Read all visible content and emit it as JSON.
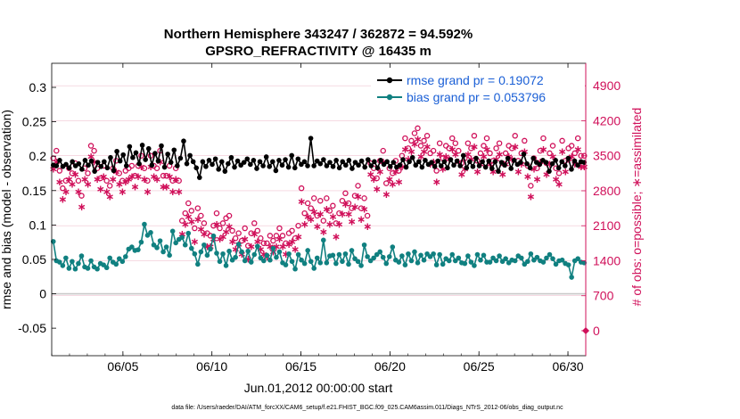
{
  "chart_data": {
    "type": "line",
    "title_line1": "Northern Hemisphere 343247 / 362872 = 94.592%",
    "title_line2": "GPSRO_REFRACTIVITY @ 16435 m",
    "xlabel": "Jun.01,2012 00:00:00 start",
    "ylabel_left": "rmse and bias (model - observation)",
    "ylabel_right": "# of obs: o=possible; ∗=assimilated",
    "footnote": "data file: /Users/raeder/DAI/ATM_forcXX/CAM6_setup/f.e21.FHIST_BGC.f09_025.CAM6assim.011/Diags_NTrS_2012-06/obs_diag_output.nc",
    "x_ticks": [
      "06/05",
      "06/10",
      "06/15",
      "06/20",
      "06/25",
      "06/30"
    ],
    "x_tick_days": [
      5,
      10,
      15,
      20,
      25,
      30
    ],
    "x_range_days": [
      1,
      31
    ],
    "y_left_ticks": [
      "0.3",
      "0.25",
      "0.2",
      "0.15",
      "0.1",
      "0.05",
      "0",
      "-0.05"
    ],
    "y_left_values": [
      0.3,
      0.25,
      0.2,
      0.15,
      0.1,
      0.05,
      0,
      -0.05
    ],
    "y_left_range": [
      -0.09,
      0.335
    ],
    "y_right_ticks": [
      "4900",
      "4200",
      "3500",
      "2800",
      "2100",
      "1400",
      "700",
      "0"
    ],
    "y_right_values": [
      4900,
      4200,
      3500,
      2800,
      2100,
      1400,
      700,
      0
    ],
    "y_right_range": [
      -500,
      5350
    ],
    "colors": {
      "rmse": "#000000",
      "bias": "#108080",
      "obs": "#d0105a",
      "legend_text": "#1a5fd6",
      "zero_line": "#c8c8c8",
      "grid": "#f0c4d2"
    },
    "series": [
      {
        "name": "rmse grand pr = 0.19072",
        "axis": "left",
        "values": [
          0.187,
          0.186,
          0.194,
          0.185,
          0.188,
          0.183,
          0.192,
          0.186,
          0.189,
          0.181,
          0.194,
          0.187,
          0.193,
          0.178,
          0.191,
          0.185,
          0.192,
          0.183,
          0.198,
          0.179,
          0.207,
          0.193,
          0.202,
          0.186,
          0.214,
          0.198,
          0.205,
          0.189,
          0.216,
          0.195,
          0.211,
          0.187,
          0.204,
          0.193,
          0.215,
          0.184,
          0.203,
          0.191,
          0.209,
          0.186,
          0.197,
          0.222,
          0.189,
          0.201,
          0.192,
          0.183,
          0.169,
          0.192,
          0.185,
          0.194,
          0.188,
          0.196,
          0.181,
          0.192,
          0.178,
          0.189,
          0.198,
          0.184,
          0.193,
          0.187,
          0.191,
          0.196,
          0.188,
          0.194,
          0.182,
          0.192,
          0.186,
          0.199,
          0.185,
          0.192,
          0.179,
          0.194,
          0.187,
          0.195,
          0.184,
          0.201,
          0.183,
          0.196,
          0.188,
          0.192,
          0.186,
          0.226,
          0.186,
          0.193,
          0.189,
          0.195,
          0.186,
          0.191,
          0.185,
          0.194,
          0.183,
          0.192,
          0.187,
          0.194,
          0.182,
          0.191,
          0.187,
          0.193,
          0.184,
          0.195,
          0.186,
          0.192,
          0.183,
          0.194,
          0.188,
          0.192,
          0.185,
          0.191,
          0.184,
          0.187,
          0.195,
          0.184,
          0.192,
          0.198,
          0.187,
          0.192,
          0.184,
          0.194,
          0.188,
          0.191,
          0.185,
          0.193,
          0.186,
          0.192,
          0.183,
          0.195,
          0.187,
          0.193,
          0.186,
          0.201,
          0.183,
          0.192,
          0.185,
          0.197,
          0.186,
          0.192,
          0.184,
          0.193,
          0.182,
          0.192,
          0.178,
          0.191,
          0.187,
          0.197,
          0.182,
          0.194,
          0.188,
          0.191,
          0.203,
          0.189,
          0.183,
          0.197,
          0.191,
          0.188,
          0.194,
          0.191,
          0.178,
          0.189,
          0.194,
          0.183,
          0.192,
          0.186,
          0.197,
          0.181,
          0.193,
          0.187,
          0.192,
          0.191
        ]
      },
      {
        "name": "bias grand pr = 0.053796",
        "axis": "left",
        "values": [
          0.076,
          0.048,
          0.046,
          0.041,
          0.052,
          0.037,
          0.047,
          0.036,
          0.044,
          0.055,
          0.039,
          0.037,
          0.048,
          0.039,
          0.036,
          0.044,
          0.042,
          0.038,
          0.052,
          0.046,
          0.043,
          0.051,
          0.047,
          0.054,
          0.065,
          0.068,
          0.063,
          0.064,
          0.075,
          0.101,
          0.085,
          0.089,
          0.071,
          0.067,
          0.077,
          0.061,
          0.068,
          0.056,
          0.091,
          0.074,
          0.079,
          0.082,
          0.071,
          0.088,
          0.066,
          0.058,
          0.043,
          0.061,
          0.071,
          0.056,
          0.065,
          0.084,
          0.059,
          0.047,
          0.058,
          0.041,
          0.062,
          0.049,
          0.053,
          0.072,
          0.061,
          0.048,
          0.062,
          0.046,
          0.057,
          0.069,
          0.052,
          0.048,
          0.056,
          0.049,
          0.066,
          0.053,
          0.061,
          0.045,
          0.042,
          0.058,
          0.047,
          0.036,
          0.057,
          0.049,
          0.044,
          0.063,
          0.047,
          0.037,
          0.052,
          0.045,
          0.078,
          0.045,
          0.055,
          0.056,
          0.044,
          0.057,
          0.047,
          0.058,
          0.043,
          0.063,
          0.051,
          0.047,
          0.041,
          0.071,
          0.054,
          0.048,
          0.052,
          0.057,
          0.061,
          0.053,
          0.044,
          0.054,
          0.068,
          0.049,
          0.046,
          0.055,
          0.042,
          0.058,
          0.048,
          0.061,
          0.045,
          0.056,
          0.049,
          0.058,
          0.054,
          0.058,
          0.042,
          0.057,
          0.043,
          0.051,
          0.048,
          0.057,
          0.048,
          0.052,
          0.045,
          0.044,
          0.055,
          0.046,
          0.041,
          0.057,
          0.049,
          0.056,
          0.046,
          0.046,
          0.052,
          0.048,
          0.055,
          0.047,
          0.051,
          0.045,
          0.049,
          0.048,
          0.055,
          0.052,
          0.043,
          0.047,
          0.058,
          0.049,
          0.053,
          0.048,
          0.046,
          0.052,
          0.057,
          0.051,
          0.043,
          0.048,
          0.049,
          0.044,
          0.042,
          0.024,
          0.048,
          0.051,
          0.046,
          0.045
        ]
      }
    ],
    "obs_possible": [
      3450,
      3600,
      3200,
      2850,
      3000,
      3250,
      3150,
      3350,
      3000,
      2700,
      3250,
      3150,
      3700,
      3600,
      3250,
      3050,
      3300,
      3000,
      2900,
      3250,
      3400,
      3150,
      3000,
      3200,
      3250,
      3300,
      3100,
      3300,
      3500,
      3250,
      3000,
      3500,
      3300,
      3250,
      3600,
      3100,
      3100,
      3300,
      3000,
      3250,
      3000,
      2200,
      2350,
      2550,
      2400,
      2050,
      2450,
      2300,
      2150,
      1950,
      1900,
      2100,
      2350,
      2050,
      2150,
      2250,
      2300,
      2000,
      1850,
      1950,
      1800,
      2050,
      1700,
      1950,
      2150,
      2000,
      1850,
      1750,
      1750,
      1900,
      1800,
      1900,
      2050,
      1900,
      1750,
      1950,
      2000,
      1850,
      2100,
      2850,
      2350,
      2550,
      2450,
      2650,
      2300,
      2600,
      2200,
      2650,
      2400,
      2500,
      2150,
      2350,
      2600,
      2750,
      2550,
      2450,
      2700,
      2900,
      2450,
      2650,
      2300,
      3350,
      3250,
      3050,
      3400,
      3600,
      2950,
      3250,
      3150,
      3400,
      3200,
      3500,
      3850,
      3650,
      3800,
      3950,
      4050,
      3700,
      3800,
      3900,
      3550,
      3600,
      3200,
      3750,
      3450,
      3700,
      3650,
      3850,
      3750,
      3600,
      3350,
      3450,
      3750,
      3650,
      3900,
      3400,
      3550,
      3700,
      3850,
      3550,
      3400,
      3650,
      3750,
      3350,
      3550,
      3700,
      3650,
      3900,
      3400,
      3550,
      3800,
      3300,
      2900,
      3450,
      3250,
      3600,
      3850,
      3350,
      3550,
      3700,
      3250,
      3150,
      3800,
      3400,
      3650,
      3700,
      3550,
      3850,
      3500,
      3500
    ],
    "obs_assimilated": [
      3250,
      3400,
      3000,
      2650,
      2800,
      3050,
      2950,
      3150,
      2800,
      2500,
      3050,
      2950,
      3500,
      3400,
      3050,
      2850,
      3100,
      2800,
      2700,
      3050,
      3200,
      2950,
      2800,
      3000,
      3050,
      3100,
      2900,
      3100,
      3300,
      3050,
      2800,
      3300,
      3100,
      3050,
      3400,
      2900,
      2900,
      3100,
      2800,
      3050,
      2800,
      1950,
      2150,
      2300,
      2200,
      1800,
      2250,
      2050,
      1950,
      1700,
      1700,
      1850,
      2150,
      1850,
      1900,
      2000,
      2100,
      1800,
      1650,
      1750,
      1550,
      1850,
      1450,
      1700,
      1950,
      1800,
      1650,
      1550,
      1500,
      1700,
      1600,
      1700,
      1850,
      1700,
      1550,
      1750,
      1800,
      1650,
      1900,
      2600,
      2150,
      2300,
      2250,
      2400,
      2100,
      2350,
      2000,
      2450,
      2150,
      2300,
      1900,
      2150,
      2350,
      2550,
      2350,
      2200,
      2500,
      2700,
      2250,
      2450,
      2100,
      3150,
      3050,
      2850,
      3200,
      3400,
      2750,
      3050,
      2950,
      3200,
      3000,
      3300,
      3650,
      3450,
      3600,
      3750,
      3850,
      3500,
      3600,
      3700,
      3350,
      3400,
      3000,
      3550,
      3250,
      3500,
      3450,
      3650,
      3550,
      3400,
      3150,
      3250,
      3550,
      3450,
      3700,
      3200,
      3350,
      3500,
      3650,
      3350,
      3200,
      3450,
      3550,
      3150,
      3350,
      3500,
      3450,
      3700,
      3200,
      3350,
      3600,
      3100,
      2700,
      3250,
      3050,
      3400,
      3650,
      3150,
      3350,
      3500,
      3050,
      2950,
      3600,
      3200,
      3450,
      3500,
      3350,
      3650,
      3300,
      3300
    ],
    "obs_zero_marker": 0
  }
}
